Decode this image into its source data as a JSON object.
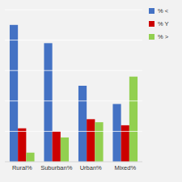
{
  "chart_data": {
    "type": "bar",
    "categories": [
      "Rural%",
      "Suburban%",
      "Urban%",
      "Mixed%"
    ],
    "series": [
      {
        "name": "% <",
        "color": "#4472C4",
        "values": [
          90,
          78,
          50,
          38
        ]
      },
      {
        "name": "% Y",
        "color": "#CC0000",
        "values": [
          22,
          20,
          28,
          24
        ]
      },
      {
        "name": "% >",
        "color": "#92D050",
        "values": [
          6,
          16,
          26,
          56
        ]
      }
    ],
    "ylim": [
      0,
      100
    ],
    "yticks": [
      0,
      20,
      40,
      60,
      80,
      100
    ],
    "grid": true,
    "legend": "right",
    "tick_labels": "x"
  }
}
